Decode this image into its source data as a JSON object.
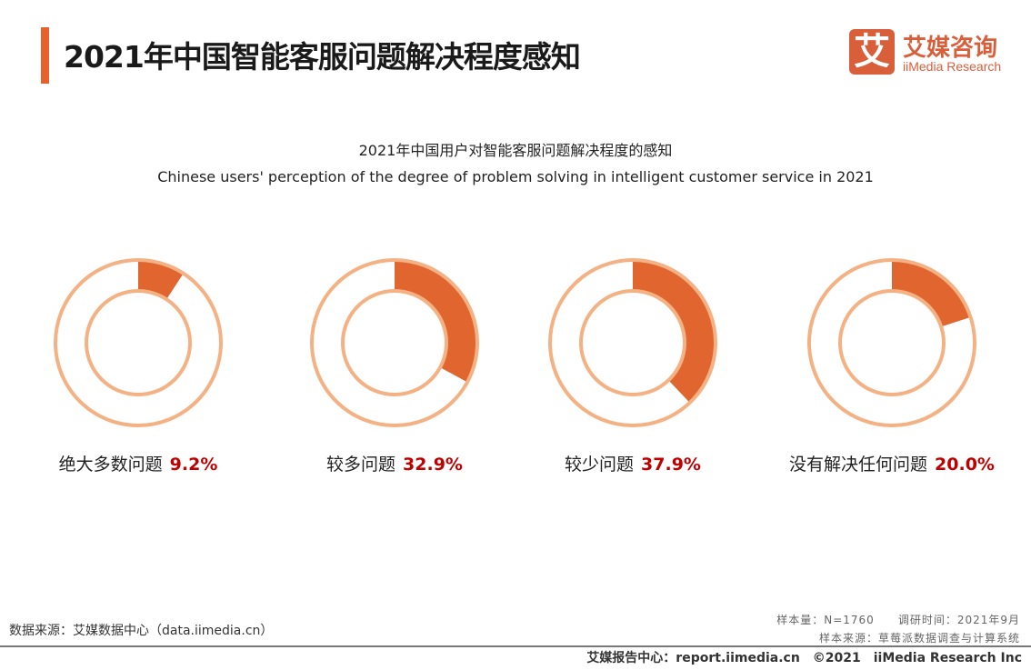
{
  "header": {
    "title": "2021年中国智能客服问题解决程度感知",
    "logo_glyph": "艾",
    "logo_cn": "艾媒咨询",
    "logo_en": "iiMedia Research"
  },
  "chart_data": {
    "type": "pie",
    "title": "2021年中国用户对智能客服问题解决程度的感知",
    "subtitle": "Chinese users' perception of the degree of problem solving in intelligent customer service in 2021",
    "categories": [
      "绝大多数问题",
      "较多问题",
      "较少问题",
      "没有解决任何问题"
    ],
    "values": [
      9.2,
      32.9,
      37.9,
      20.0
    ],
    "value_labels": [
      "9.2%",
      "32.9%",
      "37.9%",
      "20.0%"
    ],
    "colors": {
      "fill": "#e0652f",
      "ring": "#f4b183",
      "value_text": "#c00000"
    }
  },
  "footer": {
    "source": "数据来源：艾媒数据中心（data.iimedia.cn）",
    "sample": "样本量：N=1760　　调研时间：2021年9月",
    "sample_source": "样本来源：草莓派数据调查与计算系统",
    "copyright": "艾媒报告中心：report.iimedia.cn　©2021　iiMedia Research  Inc"
  }
}
